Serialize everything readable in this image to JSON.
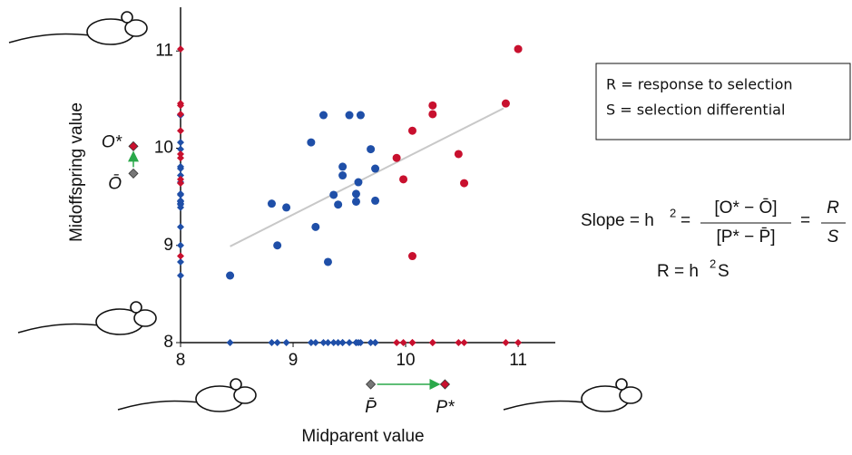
{
  "chart_data": {
    "type": "scatter",
    "xlabel": "Midparent value",
    "ylabel": "Midoffspring value",
    "xlim": [
      8,
      11.33
    ],
    "ylim": [
      8,
      11.45
    ],
    "xticks": [
      8,
      9,
      10,
      11
    ],
    "yticks": [
      8,
      9,
      10,
      11
    ],
    "series": [
      {
        "color": "#1f4fa8",
        "x": [
          8.44,
          8.81,
          8.86,
          8.94,
          9.16,
          9.2,
          9.27,
          9.31,
          9.36,
          9.4,
          9.44,
          9.44,
          9.5,
          9.56,
          9.56,
          9.58,
          9.6,
          9.69,
          9.73,
          9.73
        ],
        "values": [
          8.69,
          9.43,
          9.0,
          9.39,
          10.06,
          9.19,
          10.34,
          8.83,
          9.52,
          9.42,
          9.81,
          9.72,
          10.34,
          9.53,
          9.45,
          9.65,
          10.34,
          9.99,
          9.79,
          9.46
        ]
      },
      {
        "color": "#c8102e",
        "x": [
          9.92,
          9.98,
          10.06,
          10.06,
          10.24,
          10.24,
          10.47,
          10.52,
          10.89,
          11.0
        ],
        "values": [
          9.9,
          9.68,
          10.18,
          8.89,
          10.44,
          10.35,
          9.94,
          9.64,
          10.46,
          11.02
        ]
      }
    ],
    "regression": {
      "color": "#c8c8c8",
      "x": [
        8.44,
        10.87
      ],
      "values": [
        8.99,
        10.41
      ]
    },
    "offspring_means": [
      {
        "label": "Ō",
        "value": 9.74,
        "color": "#777777"
      },
      {
        "label": "O*",
        "value": 10.02,
        "color": "#c8102e"
      }
    ],
    "parent_means": [
      {
        "label": "P̄",
        "value": 9.69,
        "color": "#777777"
      },
      {
        "label": "P*",
        "value": 10.35,
        "color": "#c8102e"
      }
    ],
    "legend": [
      "R = response to selection",
      "S = selection differential"
    ],
    "formula": {
      "slope": "Slope = h",
      "power": "2",
      "equals": "=",
      "numerator": "[O* − Ō]",
      "denominator": "[P* − P̄]",
      "equals2": "=",
      "R": "R",
      "S": "S",
      "line2": "R = h",
      "power2": "2",
      "line2_end": "S"
    }
  }
}
